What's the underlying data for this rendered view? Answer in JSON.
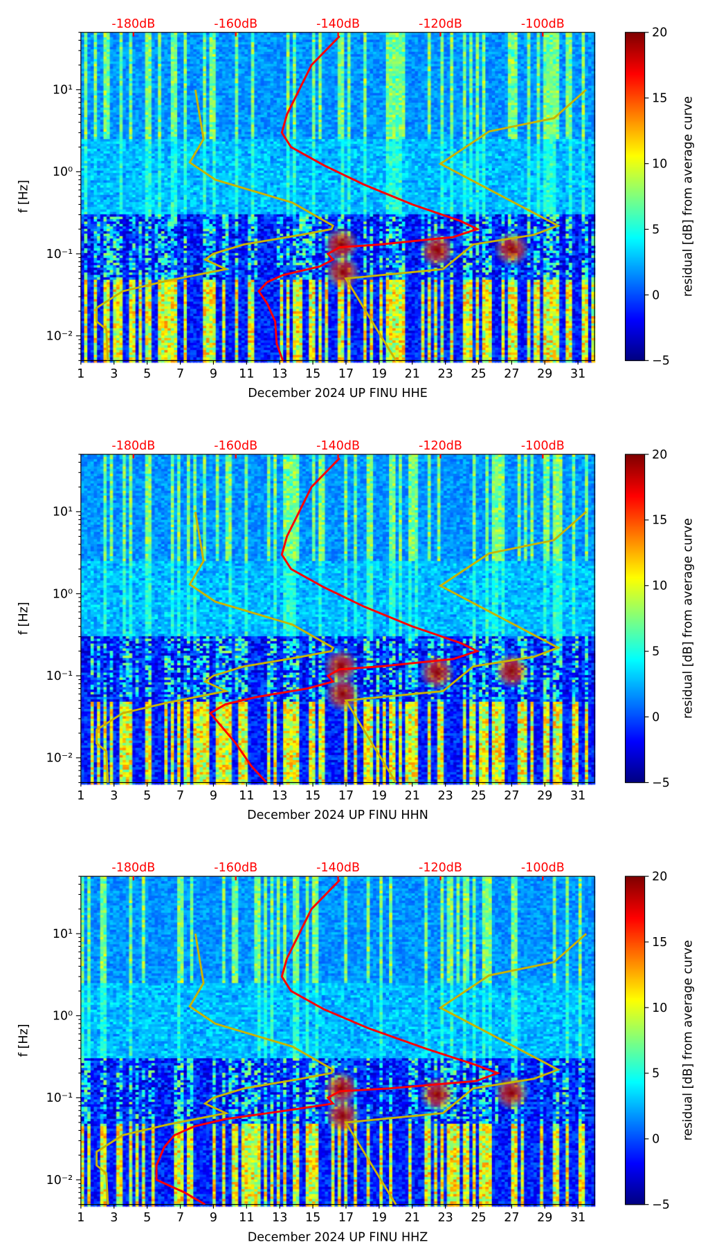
{
  "chart_data": [
    {
      "type": "heatmap",
      "title": "",
      "xlabel": "December 2024 UP FINU  HHE",
      "ylabel": "f [Hz]",
      "colorbar_label": "residual [dB] from average curve",
      "colorbar_range": [
        -5,
        20
      ],
      "colorbar_ticks": [
        "20",
        "15",
        "10",
        "5",
        "0",
        "−5"
      ],
      "xticks": [
        "1",
        "3",
        "5",
        "7",
        "9",
        "11",
        "13",
        "15",
        "17",
        "19",
        "21",
        "23",
        "25",
        "27",
        "29",
        "31"
      ],
      "xlim": [
        1,
        32
      ],
      "yticks": [
        "10⁻²",
        "10⁻¹",
        "10⁰",
        "10¹"
      ],
      "ylim": [
        0.005,
        50
      ],
      "top_ticks": [
        "-180dB",
        "-160dB",
        "-140dB",
        "-120dB",
        "-100dB"
      ],
      "red_curve": {
        "f": [
          45,
          20,
          10,
          5,
          3,
          2,
          1.2,
          0.7,
          0.4,
          0.25,
          0.2,
          0.16,
          0.13,
          0.12,
          0.1,
          0.085,
          0.07,
          0.055,
          0.045,
          0.035,
          0.025,
          0.015,
          0.008,
          0.005
        ],
        "db": [
          -139.7,
          -145.2,
          -147.6,
          -150,
          -151,
          -149.2,
          -142.8,
          -135,
          -125.5,
          -116,
          -112.8,
          -117.5,
          -131.8,
          -139.7,
          -142,
          -141,
          -143.6,
          -150.8,
          -153.9,
          -155.5,
          -153.9,
          -152.3,
          -152,
          -150.8
        ]
      }
    },
    {
      "type": "heatmap",
      "title": "",
      "xlabel": "December 2024 UP FINU  HHN",
      "ylabel": "f [Hz]",
      "colorbar_label": "residual [dB] from average curve",
      "colorbar_range": [
        -5,
        20
      ],
      "colorbar_ticks": [
        "20",
        "15",
        "10",
        "5",
        "0",
        "−5"
      ],
      "xticks": [
        "1",
        "3",
        "5",
        "7",
        "9",
        "11",
        "13",
        "15",
        "17",
        "19",
        "21",
        "23",
        "25",
        "27",
        "29",
        "31"
      ],
      "xlim": [
        1,
        32
      ],
      "yticks": [
        "10⁻²",
        "10⁻¹",
        "10⁰",
        "10¹"
      ],
      "ylim": [
        0.005,
        50
      ],
      "top_ticks": [
        "-180dB",
        "-160dB",
        "-140dB",
        "-120dB",
        "-100dB"
      ],
      "red_curve": {
        "f": [
          45,
          20,
          10,
          5,
          3,
          2,
          1.2,
          0.7,
          0.4,
          0.25,
          0.2,
          0.16,
          0.13,
          0.12,
          0.1,
          0.085,
          0.07,
          0.055,
          0.045,
          0.035,
          0.025,
          0.015,
          0.008,
          0.005
        ],
        "db": [
          -139.7,
          -145.2,
          -147.6,
          -150,
          -151,
          -149.2,
          -142.8,
          -135,
          -125.5,
          -116,
          -112.8,
          -117.5,
          -131.8,
          -139.7,
          -142,
          -141,
          -146,
          -156,
          -162,
          -165,
          -163,
          -160,
          -157,
          -154
        ]
      }
    },
    {
      "type": "heatmap",
      "title": "",
      "xlabel": "December 2024 UP FINU  HHZ",
      "ylabel": "f [Hz]",
      "colorbar_label": "residual [dB] from average curve",
      "colorbar_range": [
        -5,
        20
      ],
      "colorbar_ticks": [
        "20",
        "15",
        "10",
        "5",
        "0",
        "−5"
      ],
      "xticks": [
        "1",
        "3",
        "5",
        "7",
        "9",
        "11",
        "13",
        "15",
        "17",
        "19",
        "21",
        "23",
        "25",
        "27",
        "29",
        "31"
      ],
      "xlim": [
        1,
        32
      ],
      "yticks": [
        "10⁻²",
        "10⁻¹",
        "10⁰",
        "10¹"
      ],
      "ylim": [
        0.005,
        50
      ],
      "top_ticks": [
        "-180dB",
        "-160dB",
        "-140dB",
        "-120dB",
        "-100dB"
      ],
      "red_curve": {
        "f": [
          45,
          20,
          10,
          5,
          3,
          2,
          1.2,
          0.7,
          0.4,
          0.25,
          0.2,
          0.16,
          0.13,
          0.12,
          0.1,
          0.085,
          0.07,
          0.055,
          0.045,
          0.035,
          0.025,
          0.015,
          0.01,
          0.007,
          0.005
        ],
        "db": [
          -139.7,
          -145.2,
          -147.6,
          -150,
          -151,
          -149.2,
          -142.8,
          -134,
          -123,
          -113,
          -108.8,
          -113,
          -130,
          -139.7,
          -142,
          -141,
          -150,
          -162,
          -168,
          -172,
          -174,
          -175.5,
          -175.5,
          -170,
          -166
        ]
      }
    }
  ],
  "yellow_curves": [
    {
      "f": [
        10,
        2.5,
        1.3,
        0.8,
        0.42,
        0.22,
        0.2,
        0.17,
        0.13,
        0.1,
        0.085,
        0.065,
        0.047,
        0.035,
        0.022,
        0.015,
        0.012,
        0.005
      ],
      "db": [
        -167.9,
        -166.3,
        -169,
        -164,
        -148.9,
        -141,
        -141.3,
        -147.3,
        -158.4,
        -164.4,
        -166,
        -161.9,
        -173.4,
        -182.1,
        -187.2,
        -187.2,
        -185.3,
        -185
      ]
    },
    {
      "f": [
        10,
        4.5,
        3.1,
        1.25,
        0.22,
        0.17,
        0.13,
        0.065,
        0.05,
        0.005
      ],
      "db": [
        -91.5,
        -97.8,
        -110.5,
        -120,
        -97,
        -101.8,
        -113.6,
        -119.5,
        -138.5,
        -128.7
      ]
    }
  ],
  "colors": {
    "red": "#ff0000",
    "yellow": "#c8b400"
  }
}
